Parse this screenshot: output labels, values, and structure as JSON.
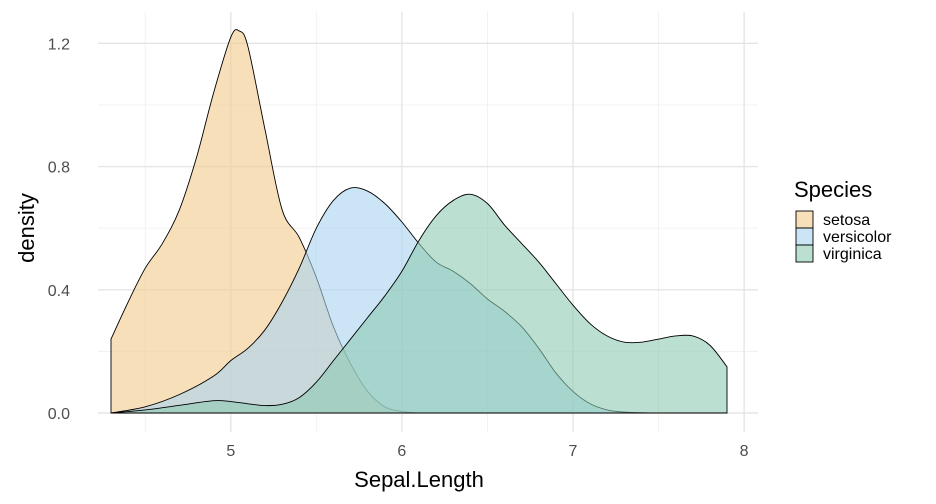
{
  "chart_data": {
    "type": "area",
    "xlabel": "Sepal.Length",
    "ylabel": "density",
    "xlim": [
      4.3,
      7.9
    ],
    "ylim": [
      0,
      1.24
    ],
    "xticks": [
      5,
      6,
      7,
      8
    ],
    "yticks": [
      0.0,
      0.4,
      0.8,
      1.2
    ],
    "xtick_labels": [
      "5",
      "6",
      "7",
      "8"
    ],
    "ytick_labels": [
      "0.0",
      "0.4",
      "0.8",
      "1.2"
    ],
    "grid": true,
    "legend": {
      "title": "Species",
      "position": "right"
    },
    "series": [
      {
        "name": "setosa",
        "color": "#f2c98a",
        "x": [
          4.3,
          4.4,
          4.5,
          4.6,
          4.7,
          4.8,
          4.9,
          5.0,
          5.05,
          5.1,
          5.2,
          5.3,
          5.4,
          5.5,
          5.6,
          5.7,
          5.8,
          5.9,
          6.0,
          6.1
        ],
        "y": [
          0.24,
          0.36,
          0.47,
          0.55,
          0.66,
          0.83,
          1.04,
          1.22,
          1.24,
          1.19,
          0.92,
          0.66,
          0.57,
          0.44,
          0.28,
          0.16,
          0.07,
          0.02,
          0.005,
          0.0
        ]
      },
      {
        "name": "versicolor",
        "color": "#a8d4f2",
        "x": [
          4.3,
          4.5,
          4.7,
          4.9,
          5.0,
          5.1,
          5.2,
          5.3,
          5.4,
          5.5,
          5.6,
          5.7,
          5.8,
          5.9,
          6.0,
          6.1,
          6.2,
          6.3,
          6.4,
          6.5,
          6.6,
          6.7,
          6.8,
          6.9,
          7.0,
          7.1,
          7.2,
          7.3,
          7.4,
          7.5,
          7.6,
          7.7,
          7.8,
          7.9
        ],
        "y": [
          0.0,
          0.02,
          0.06,
          0.12,
          0.17,
          0.21,
          0.27,
          0.36,
          0.47,
          0.6,
          0.69,
          0.73,
          0.72,
          0.68,
          0.62,
          0.55,
          0.49,
          0.46,
          0.42,
          0.37,
          0.33,
          0.28,
          0.21,
          0.13,
          0.07,
          0.03,
          0.01,
          0.003,
          0.001,
          0.0,
          0.0,
          0.0,
          0.0,
          0.0
        ]
      },
      {
        "name": "virginica",
        "color": "#8ecab0",
        "x": [
          4.3,
          4.5,
          4.7,
          4.9,
          5.0,
          5.1,
          5.2,
          5.3,
          5.4,
          5.5,
          5.6,
          5.7,
          5.8,
          5.9,
          6.0,
          6.1,
          6.2,
          6.3,
          6.4,
          6.5,
          6.6,
          6.7,
          6.8,
          6.9,
          7.0,
          7.1,
          7.2,
          7.3,
          7.4,
          7.5,
          7.6,
          7.7,
          7.8,
          7.9
        ],
        "y": [
          0.0,
          0.01,
          0.025,
          0.04,
          0.037,
          0.03,
          0.024,
          0.028,
          0.05,
          0.1,
          0.17,
          0.24,
          0.31,
          0.38,
          0.46,
          0.56,
          0.64,
          0.69,
          0.71,
          0.68,
          0.61,
          0.55,
          0.49,
          0.42,
          0.35,
          0.29,
          0.25,
          0.23,
          0.23,
          0.24,
          0.25,
          0.25,
          0.22,
          0.15
        ]
      }
    ]
  }
}
